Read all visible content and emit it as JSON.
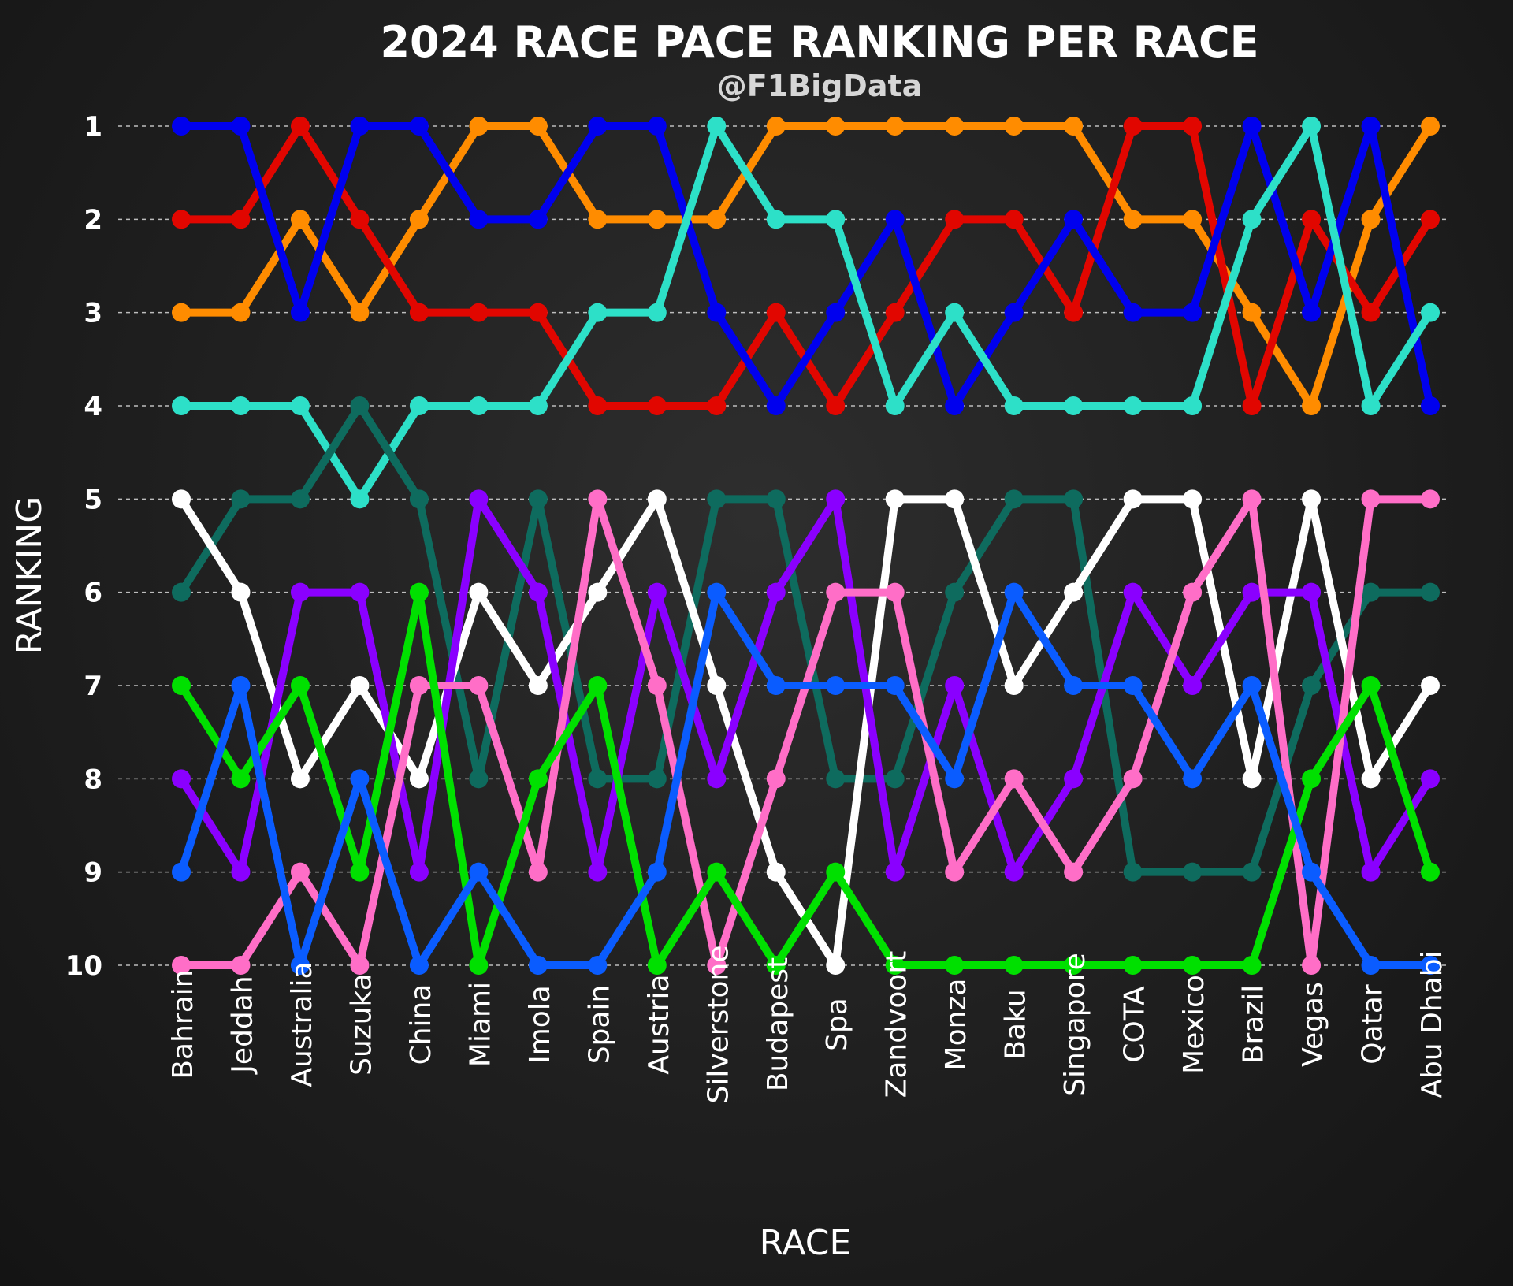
{
  "title": "2024 RACE PACE RANKING PER RACE",
  "subtitle": "@F1BigData",
  "chart_data": {
    "type": "line",
    "xlabel": "RACE",
    "ylabel": "RANKING",
    "categories": [
      "Bahrain",
      "Jeddah",
      "Australia",
      "Suzuka",
      "China",
      "Miami",
      "Imola",
      "Spain",
      "Austria",
      "Silverstone",
      "Budapest",
      "Spa",
      "Zandvoort",
      "Monza",
      "Baku",
      "Singapore",
      "COTA",
      "Mexico",
      "Brazil",
      "Vegas",
      "Qatar",
      "Abu Dhabi"
    ],
    "y_ticks": [
      1,
      2,
      3,
      4,
      5,
      6,
      7,
      8,
      9,
      10
    ],
    "ylim": [
      10,
      1
    ],
    "grid": "horizontal dashed",
    "legend": "none",
    "series": [
      {
        "color": "#ff8c00",
        "values": [
          3,
          3,
          2,
          3,
          2,
          1,
          1,
          2,
          2,
          2,
          1,
          1,
          1,
          1,
          1,
          1,
          2,
          2,
          3,
          4,
          2,
          1
        ]
      },
      {
        "color": "#e10600",
        "values": [
          2,
          2,
          1,
          2,
          3,
          3,
          3,
          4,
          4,
          4,
          3,
          4,
          3,
          2,
          2,
          3,
          1,
          1,
          4,
          2,
          3,
          2
        ]
      },
      {
        "color": "#0000ee",
        "values": [
          1,
          1,
          3,
          1,
          1,
          2,
          2,
          1,
          1,
          3,
          4,
          3,
          2,
          4,
          3,
          2,
          3,
          3,
          1,
          3,
          1,
          4
        ]
      },
      {
        "color": "#2de0c8",
        "values": [
          4,
          4,
          4,
          5,
          4,
          4,
          4,
          3,
          3,
          1,
          2,
          2,
          4,
          3,
          4,
          4,
          4,
          4,
          2,
          1,
          4,
          3
        ]
      },
      {
        "color": "#0e6b5e",
        "values": [
          6,
          5,
          5,
          4,
          5,
          8,
          5,
          8,
          8,
          5,
          5,
          8,
          8,
          6,
          5,
          5,
          9,
          9,
          9,
          7,
          6,
          6
        ]
      },
      {
        "color": "#ffffff",
        "values": [
          5,
          6,
          8,
          7,
          8,
          6,
          7,
          6,
          5,
          7,
          9,
          10,
          5,
          5,
          7,
          6,
          5,
          5,
          8,
          5,
          8,
          7
        ]
      },
      {
        "color": "#8a00ff",
        "values": [
          8,
          9,
          6,
          6,
          9,
          5,
          6,
          9,
          6,
          8,
          6,
          5,
          9,
          7,
          9,
          8,
          6,
          7,
          6,
          6,
          9,
          8
        ]
      },
      {
        "color": "#ff6ec7",
        "values": [
          10,
          10,
          9,
          10,
          7,
          7,
          9,
          5,
          7,
          10,
          8,
          6,
          6,
          9,
          8,
          9,
          8,
          6,
          5,
          10,
          5,
          5
        ]
      },
      {
        "color": "#00e000",
        "values": [
          7,
          8,
          7,
          9,
          6,
          10,
          8,
          7,
          10,
          9,
          10,
          9,
          10,
          10,
          10,
          10,
          10,
          10,
          10,
          8,
          7,
          9
        ]
      },
      {
        "color": "#0a5cff",
        "values": [
          9,
          7,
          10,
          8,
          10,
          9,
          10,
          10,
          9,
          6,
          7,
          7,
          7,
          8,
          6,
          7,
          7,
          8,
          7,
          9,
          10,
          10
        ]
      }
    ]
  }
}
